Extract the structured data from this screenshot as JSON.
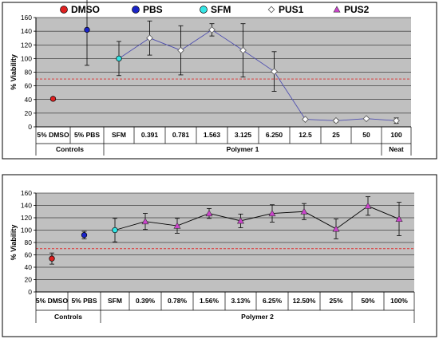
{
  "chart_data": [
    {
      "type": "scatter",
      "ylabel": "% Viability",
      "ylim": [
        0,
        160
      ],
      "yticks": [
        0,
        20,
        40,
        60,
        80,
        100,
        120,
        140,
        160
      ],
      "threshold": 70,
      "grid": true,
      "legend": "top",
      "legend_entries": [
        {
          "name": "DMSO",
          "color": "#e02020",
          "marker": "circle"
        },
        {
          "name": "PBS",
          "color": "#1a24c8",
          "marker": "circle"
        },
        {
          "name": "SFM",
          "color": "#33e6e6",
          "marker": "circle"
        },
        {
          "name": "PUS1",
          "color": "#ffffff",
          "marker": "diamond"
        },
        {
          "name": "PUS2",
          "color": "#cc44cc",
          "marker": "triangle"
        }
      ],
      "categories": [
        "5% DMSO",
        "5% PBS",
        "SFM",
        "0.391",
        "0.781",
        "1.563",
        "3.125",
        "6.250",
        "12.5",
        "25",
        "50",
        "100"
      ],
      "groups": [
        {
          "label": "Controls",
          "span": [
            0,
            1
          ]
        },
        {
          "label": "Polymer 1",
          "span": [
            2,
            10
          ]
        },
        {
          "label": "Neat",
          "span": [
            11,
            11
          ]
        }
      ],
      "points": [
        {
          "name": "DMSO",
          "index": 0,
          "y": 41,
          "err": 2,
          "color": "#e02020",
          "marker": "circle"
        },
        {
          "name": "PBS",
          "index": 1,
          "y": 142,
          "err": 52,
          "color": "#1a24c8",
          "marker": "circle"
        },
        {
          "name": "SFM",
          "index": 2,
          "y": 100,
          "err": 25,
          "color": "#33e6e6",
          "marker": "circle"
        }
      ],
      "series": [
        {
          "name": "PUS1",
          "color": "#ffffff",
          "line": "#5050b0",
          "marker": "diamond",
          "start_index": 2,
          "values": [
            100,
            130,
            112,
            142,
            112,
            81,
            11,
            9,
            12,
            9
          ],
          "errors": [
            0,
            25,
            36,
            9,
            39,
            29,
            1,
            2,
            1,
            4
          ]
        }
      ]
    },
    {
      "type": "scatter",
      "ylabel": "% Viability",
      "ylim": [
        0,
        160
      ],
      "yticks": [
        0,
        20,
        40,
        60,
        80,
        100,
        120,
        140,
        160
      ],
      "threshold": 70,
      "grid": true,
      "categories": [
        "5% DMSO",
        "5% PBS",
        "SFM",
        "0.39%",
        "0.78%",
        "1.56%",
        "3.13%",
        "6.25%",
        "12.50%",
        "25%",
        "50%",
        "100%"
      ],
      "groups": [
        {
          "label": "Controls",
          "span": [
            0,
            1
          ]
        },
        {
          "label": "Polymer 2",
          "span": [
            2,
            11
          ]
        }
      ],
      "points": [
        {
          "name": "DMSO",
          "index": 0,
          "y": 54,
          "err": 9,
          "color": "#e02020",
          "marker": "circle"
        },
        {
          "name": "PBS",
          "index": 1,
          "y": 92,
          "err": 6,
          "color": "#1a24c8",
          "marker": "circle"
        },
        {
          "name": "SFM",
          "index": 2,
          "y": 100,
          "err": 19,
          "color": "#33e6e6",
          "marker": "circle"
        }
      ],
      "series": [
        {
          "name": "PUS2",
          "color": "#cc44cc",
          "line": "#000000",
          "marker": "triangle",
          "start_index": 2,
          "values": [
            100,
            114,
            107,
            127,
            115,
            127,
            130,
            102,
            139,
            118
          ],
          "errors": [
            0,
            13,
            12,
            8,
            11,
            14,
            13,
            16,
            15,
            27
          ]
        }
      ]
    }
  ]
}
